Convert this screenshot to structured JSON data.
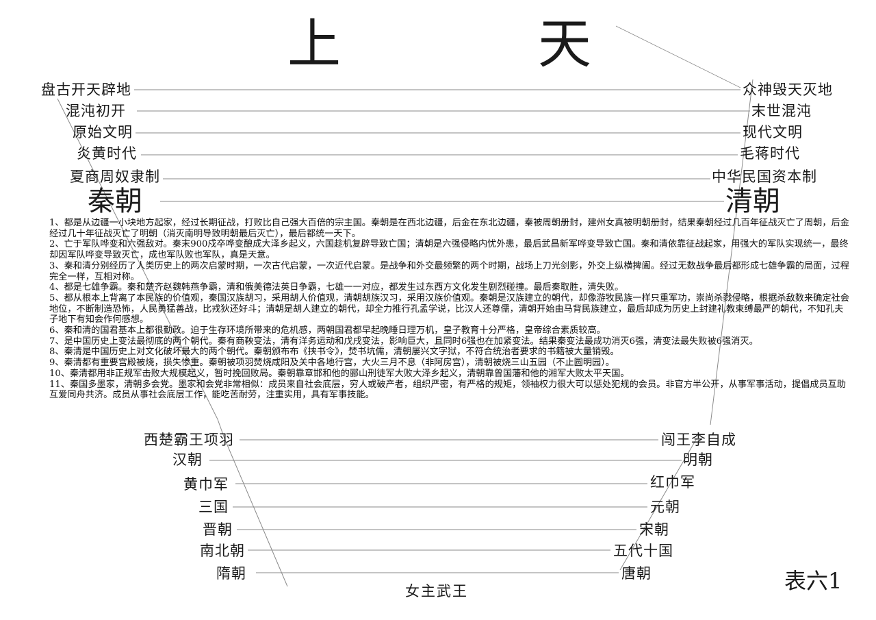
{
  "title": {
    "left_char": "上",
    "right_char": "天"
  },
  "left_top": [
    "盘古开天辟地",
    "混沌初开",
    "原始文明",
    "炎黄时代",
    "夏商周奴隶制"
  ],
  "right_top": [
    "众神毁天灭地",
    "末世混沌",
    "现代文明",
    "毛蒋时代",
    "中华民国资本制"
  ],
  "main_left": "秦朝",
  "main_right": "清朝",
  "notes": [
    "1、都是从边疆一小块地方起家，经过长期征战，打败比自己强大百倍的宗主国。秦朝是在西北边疆，后金在东北边疆，秦被周朝册封，建州女真被明朝册封，结果秦朝经过几百年征战灭亡了周朝，后金经过几十年征战灭亡了明朝（消灭南明导致明朝最后灭亡），最后都统一天下。",
    "2、亡于军队哗变和六强敌对。秦末900戍卒哗变酿成大泽乡起义，六国趁机复辟导致亡国；清朝是六强侵略内忧外患，最后武昌新军哗变导致亡国。秦和清依靠征战起家，用强大的军队实现统一，最终却因军队哗变导致灭亡，成也军队败也军队，真是天意。",
    "3、秦和清分别经历了人类历史上的两次启蒙时期，一次古代启蒙，一次近代启蒙。是战争和外交最频繁的两个时期，战场上刀光剑影，外交上纵横捭阖。经过无数战争最后都形成七雄争霸的局面，过程完全一样，互相对称。",
    "4、都是七雄争霸。秦和楚齐赵魏韩燕争霸，清和俄美德法英日争霸，七雄一一对应，都发生过东西方文化发生剧烈碰撞。最后秦取胜，清失败。",
    "5、都从根本上背离了本民族的价值观，秦国汉族胡习，采用胡人价值观，清朝胡族汉习，采用汉族价值观。秦朝是汉族建立的朝代，却像游牧民族一样只重军功，崇尚杀戮侵略，根据杀敌数来确定社会地位，不断制造恐怖，人民勇猛善战，比戎狄还好斗；清朝是胡人建立的朝代，却全力推行孔孟学说，比汉人还尊儒，清朝开始由马背民族建立，最后却成为历史上封建礼教束缚最严的朝代，不知孔夫子地下有知会作何感想。",
    "6、秦和清的国君基本上都很勤政。迫于生存环境所带来的危机感，两朝国君都早起晚睡日理万机，皇子教育十分严格，皇帝综合素质较高。",
    "7、是中国历史上变法最彻底的两个朝代。秦有商鞅变法，清有洋务运动和戊戌变法，影响巨大，且同时6强也在加紧变法。结果秦变法最成功消灭6强，清变法最失败被6强消灭。",
    "8、秦清是中国历史上对文化破坏最大的两个朝代。秦朝颁布布《挟书令》，焚书坑儒，清朝屡兴文字狱，不符合统治者要求的书籍被大量销毁。",
    "9、秦清都有重要宫殿被烧，损失惨重。秦朝被项羽焚烧咸阳及关中各地行宫，大火三月不息（非阿房宫），清朝被烧三山五园（不止圆明园）。",
    "10、秦清都用非正规军击败大规模起义，暂时挽回败局。秦朝靠章邯和他的郦山刑徒军大败大泽乡起义，清朝靠曾国藩和他的湘军大败太平天国。",
    "11、秦国多墨家，清朝多会党。墨家和会党非常相似：成员来自社会底层，穷人或破产者，组织严密，有严格的规矩，领袖权力很大可以惩处犯规的会员。非官方半公开，从事军事活动，提倡成员互助互爱同舟共济。成员从事社会底层工作，能吃苦耐劳，注重实用，具有军事技能。"
  ],
  "left_bottom": [
    "西楚霸王项羽",
    "汉朝",
    "黄巾军",
    "三国",
    "晋朝",
    "南北朝",
    "隋朝"
  ],
  "right_bottom": [
    "闯王李自成",
    "明朝",
    "红巾军",
    "元朝",
    "宋朝",
    "五代十国",
    "唐朝"
  ],
  "bottom_center": "女主武王",
  "table_label": "表六1"
}
